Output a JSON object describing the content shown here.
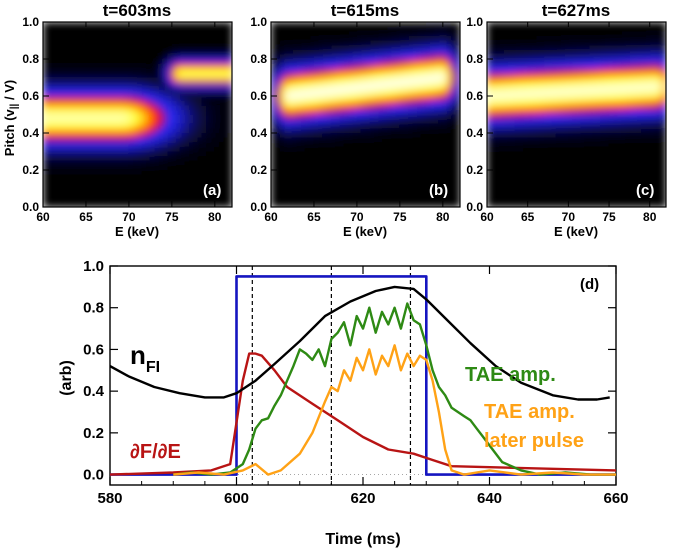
{
  "chart_data": [
    {
      "type": "heatmap",
      "title": "t=603ms",
      "panel_label": "(a)",
      "xlabel": "E (keV)",
      "ylabel": "Pitch (v∥ / V)",
      "ylabel_parts": {
        "pre": "Pitch (v",
        "sub": "||",
        "post": " / V)"
      },
      "xlim": [
        60,
        82
      ],
      "ylim": [
        0,
        1
      ],
      "xticks": [
        "60",
        "65",
        "70",
        "75",
        "80"
      ],
      "yticks": [
        "0.0",
        "0.2",
        "0.4",
        "0.6",
        "0.8",
        "1.0"
      ],
      "colormap": [
        "#000000",
        "#1a1ab0",
        "#2c2cff",
        "#ff0000",
        "#ff9a00",
        "#ffff30",
        "#ffffe8"
      ],
      "blobs": [
        {
          "e0": 60,
          "e1": 69,
          "e1_fade": 77,
          "pitch": 0.48,
          "width": 0.2,
          "peak": 0.95
        },
        {
          "e0": 76,
          "e1": 82,
          "pitch": 0.72,
          "width": 0.1,
          "peak": 0.9
        }
      ]
    },
    {
      "type": "heatmap",
      "title": "t=615ms",
      "panel_label": "(b)",
      "xlabel": "E (keV)",
      "xlim": [
        60,
        82
      ],
      "ylim": [
        0,
        1
      ],
      "xticks": [
        "60",
        "65",
        "70",
        "75",
        "80"
      ],
      "yticks": [
        "0.0",
        "0.2",
        "0.4",
        "0.6",
        "0.8",
        "1.0"
      ],
      "blobs": [
        {
          "e0": 62,
          "e1": 80,
          "pitch_start": 0.6,
          "pitch_end": 0.7,
          "width": 0.2,
          "peak": 1.0
        }
      ]
    },
    {
      "type": "heatmap",
      "title": "t=627ms",
      "panel_label": "(c)",
      "xlabel": "E (keV)",
      "xlim": [
        60,
        82
      ],
      "ylim": [
        0,
        1
      ],
      "xticks": [
        "60",
        "65",
        "70",
        "75",
        "80"
      ],
      "yticks": [
        "0.0",
        "0.2",
        "0.4",
        "0.6",
        "0.8",
        "1.0"
      ],
      "blobs": [
        {
          "e0": 60,
          "e1": 81,
          "pitch_start": 0.6,
          "pitch_end": 0.65,
          "width": 0.2,
          "peak": 0.98
        }
      ]
    },
    {
      "type": "line",
      "panel_label": "(d)",
      "xlabel": "Time (ms)",
      "ylabel": "(arb)",
      "xlim": [
        580,
        660
      ],
      "ylim": [
        -0.05,
        1.0
      ],
      "xticks": [
        "580",
        "600",
        "620",
        "640",
        "660"
      ],
      "yticks": [
        "0.0",
        "0.2",
        "0.4",
        "0.6",
        "0.8",
        "1.0"
      ],
      "vlines": [
        602.5,
        615,
        627.5
      ],
      "series": [
        {
          "name": "beam-pulse",
          "color": "#1515c0",
          "x": [
            580,
            600,
            600,
            630,
            630,
            660
          ],
          "y": [
            0.0,
            0.0,
            0.95,
            0.95,
            0.0,
            0.0
          ]
        },
        {
          "name": "n_FI",
          "color": "#000000",
          "x": [
            580,
            583,
            587,
            591,
            595,
            598,
            600,
            603,
            606,
            610,
            614,
            618,
            622,
            625,
            628,
            630,
            633,
            637,
            641,
            645,
            650,
            654,
            657,
            659
          ],
          "y": [
            0.52,
            0.47,
            0.42,
            0.39,
            0.37,
            0.37,
            0.39,
            0.45,
            0.53,
            0.64,
            0.76,
            0.83,
            0.88,
            0.9,
            0.89,
            0.84,
            0.75,
            0.63,
            0.52,
            0.44,
            0.38,
            0.36,
            0.36,
            0.37
          ]
        },
        {
          "name": "∂F/∂E",
          "color": "#b81414",
          "x": [
            580,
            590,
            596,
            599,
            600,
            601,
            602,
            603,
            604,
            606,
            608,
            612,
            616,
            620,
            624,
            628,
            631,
            634,
            660
          ],
          "y": [
            0.0,
            0.01,
            0.02,
            0.05,
            0.25,
            0.45,
            0.58,
            0.58,
            0.57,
            0.5,
            0.42,
            0.34,
            0.26,
            0.18,
            0.12,
            0.1,
            0.07,
            0.04,
            0.02
          ]
        },
        {
          "name": "TAE amp.",
          "color": "#2e8a14",
          "x": [
            590,
            593,
            596,
            599,
            601,
            602,
            603,
            604,
            605,
            606,
            607,
            608,
            609,
            610,
            611,
            612,
            613,
            614,
            615,
            616,
            617,
            618,
            619,
            620,
            621,
            622,
            623,
            624,
            625,
            626,
            627,
            628,
            629,
            630,
            631,
            632,
            633,
            634,
            635,
            636,
            637,
            638,
            639,
            640,
            642,
            645,
            648,
            652,
            656,
            660
          ],
          "y": [
            0.0,
            0.01,
            0.0,
            0.01,
            0.05,
            0.12,
            0.22,
            0.26,
            0.27,
            0.33,
            0.38,
            0.45,
            0.52,
            0.6,
            0.58,
            0.55,
            0.6,
            0.52,
            0.65,
            0.68,
            0.73,
            0.62,
            0.76,
            0.7,
            0.8,
            0.68,
            0.78,
            0.72,
            0.8,
            0.7,
            0.82,
            0.74,
            0.72,
            0.62,
            0.5,
            0.42,
            0.38,
            0.32,
            0.3,
            0.28,
            0.26,
            0.22,
            0.18,
            0.14,
            0.06,
            0.02,
            0.0,
            0.01,
            0.0,
            0.0
          ]
        },
        {
          "name": "TAE amp. later pulse",
          "color": "#ffa216",
          "x": [
            590,
            594,
            598,
            601,
            603,
            605,
            607,
            610,
            612,
            614,
            615,
            616,
            617,
            618,
            619,
            620,
            621,
            622,
            623,
            624,
            625,
            626,
            627,
            628,
            629,
            630,
            631,
            632,
            633,
            634,
            636,
            640,
            645,
            650,
            655,
            660
          ],
          "y": [
            0.0,
            0.01,
            0.0,
            0.02,
            0.05,
            0.0,
            0.02,
            0.1,
            0.2,
            0.35,
            0.42,
            0.4,
            0.5,
            0.45,
            0.56,
            0.5,
            0.6,
            0.48,
            0.57,
            0.52,
            0.62,
            0.5,
            0.58,
            0.52,
            0.57,
            0.55,
            0.45,
            0.3,
            0.12,
            0.02,
            0.0,
            0.02,
            0.0,
            0.01,
            0.0,
            0.0
          ]
        }
      ],
      "annotations": [
        {
          "text": "n",
          "sub": "FI",
          "color": "#000000"
        },
        {
          "text": "∂F/∂E",
          "color": "#b81414"
        },
        {
          "text": "TAE amp.",
          "color": "#2e8a14"
        },
        {
          "text": "TAE amp.",
          "color": "#ffa216"
        },
        {
          "text": "later pulse",
          "color": "#ffa216"
        }
      ]
    }
  ]
}
